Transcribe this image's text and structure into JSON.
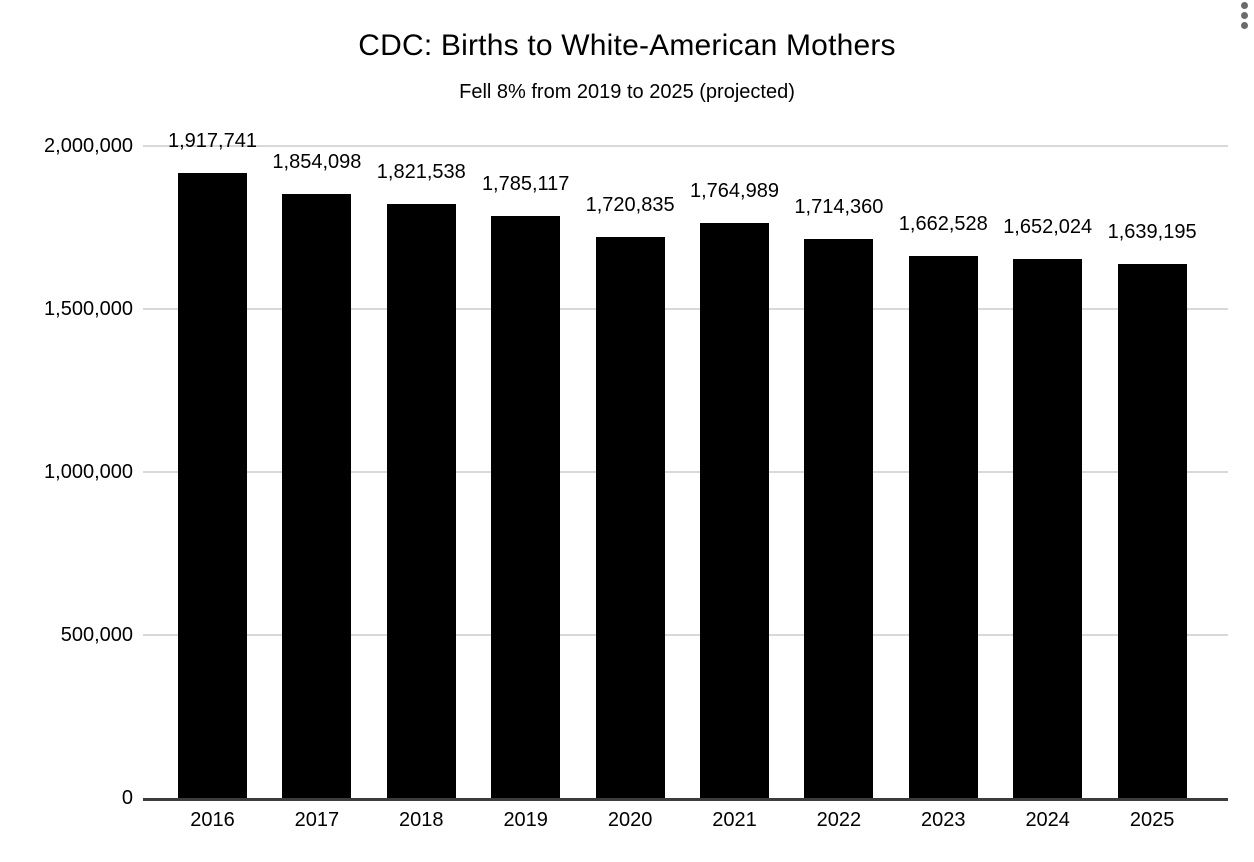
{
  "header": {
    "options_menu_icon": "kebab-menu-icon"
  },
  "chart_data": {
    "type": "bar",
    "title": "CDC: Births to White-American Mothers",
    "subtitle": "Fell 8% from 2019 to 2025 (projected)",
    "categories": [
      "2016",
      "2017",
      "2018",
      "2019",
      "2020",
      "2021",
      "2022",
      "2023",
      "2024",
      "2025"
    ],
    "values": [
      1917741,
      1854098,
      1821538,
      1785117,
      1720835,
      1764989,
      1714360,
      1662528,
      1652024,
      1639195
    ],
    "data_labels": [
      "1,917,741",
      "1,854,098",
      "1,821,538",
      "1,785,117",
      "1,720,835",
      "1,764,989",
      "1,714,360",
      "1,662,528",
      "1,652,024",
      "1,639,195"
    ],
    "xlabel": "",
    "ylabel": "",
    "ylim": [
      0,
      2000000
    ],
    "y_ticks": [
      0,
      500000,
      1000000,
      1500000,
      2000000
    ],
    "y_tick_labels": [
      "0",
      "500,000",
      "1,000,000",
      "1,500,000",
      "2,000,000"
    ],
    "grid": true,
    "legend_position": "none",
    "colors": {
      "bar": "#000000",
      "gridline": "#d9d9d9",
      "axis_line": "#3c3c3c",
      "text": "#000000",
      "menu_icon": "#6b6b6b",
      "background": "#ffffff"
    }
  }
}
